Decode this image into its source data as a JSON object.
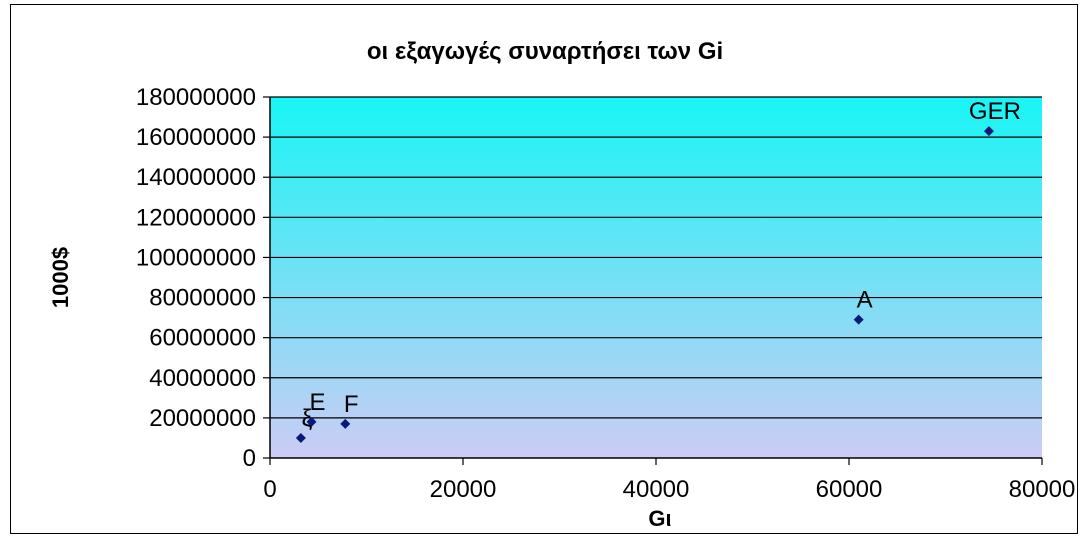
{
  "chart_data": {
    "type": "scatter",
    "title": "οι εξαγωγές συναρτήσει των Gi",
    "xlabel": "Gι",
    "ylabel": "1000$",
    "xlim": [
      0,
      80000
    ],
    "ylim": [
      0,
      180000000
    ],
    "xticks": [
      "0",
      "20000",
      "40000",
      "60000",
      "80000"
    ],
    "yticks": [
      "0",
      "20000000",
      "40000000",
      "60000000",
      "80000000",
      "100000000",
      "120000000",
      "140000000",
      "160000000",
      "180000000"
    ],
    "points": [
      {
        "x": 3200,
        "y": 10000000,
        "label": "ξ"
      },
      {
        "x": 4300,
        "y": 18000000,
        "label": "E"
      },
      {
        "x": 7800,
        "y": 17000000,
        "label": "F"
      },
      {
        "x": 61000,
        "y": 69000000,
        "label": "A"
      },
      {
        "x": 74500,
        "y": 163000000,
        "label": "GER"
      }
    ],
    "grid": true,
    "marker_color": "#0a1a7a",
    "plot_gradient_top": "#19f5f5",
    "plot_gradient_bottom": "#ccccf5"
  }
}
